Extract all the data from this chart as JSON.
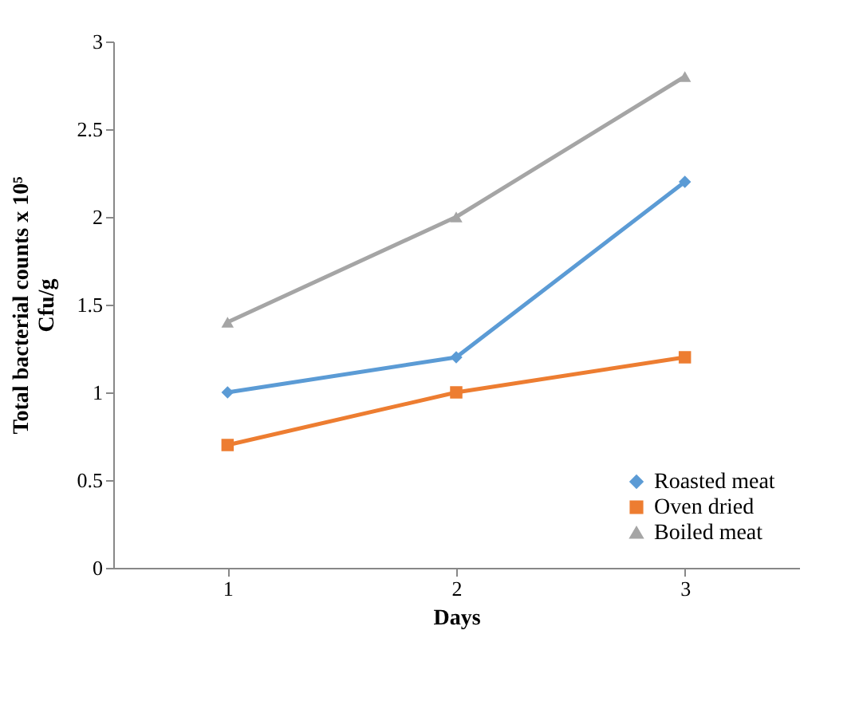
{
  "chart_data": {
    "type": "line",
    "xlabel": "Days",
    "ylabel": "Total bacterial counts x 10⁵ Cfu/g",
    "categories": [
      "1",
      "2",
      "3"
    ],
    "series": [
      {
        "name": "Roasted meat",
        "color": "#5b9bd5",
        "marker": "diamond",
        "values": [
          1.0,
          1.2,
          2.2
        ]
      },
      {
        "name": "Oven dried",
        "color": "#ed7d31",
        "marker": "square",
        "values": [
          0.7,
          1.0,
          1.2
        ]
      },
      {
        "name": "Boiled meat",
        "color": "#a5a5a5",
        "marker": "triangle",
        "values": [
          1.4,
          2.0,
          2.8
        ]
      }
    ],
    "ylim": [
      0,
      3
    ],
    "yticks": [
      0,
      0.5,
      1,
      1.5,
      2,
      2.5,
      3
    ],
    "grid": false,
    "legend": "bottom right"
  }
}
